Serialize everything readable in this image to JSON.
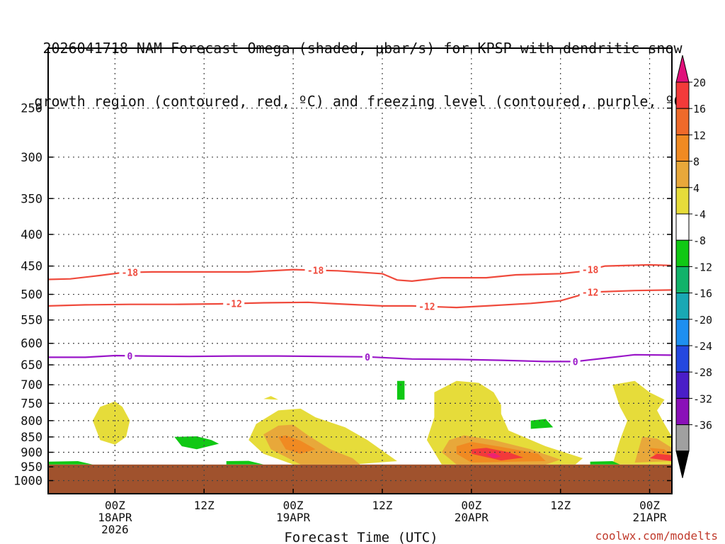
{
  "title_lines": [
    "2026041718 NAM Forecast Omega (shaded, μbar/s) for KPSP with dendritic snow",
    "growth region (contoured, red, ºC) and freezing level (contoured, purple, ºC)"
  ],
  "watermark": "coolwx.com/modelts",
  "chart_data": {
    "type": "heatmap",
    "title": "2026041718 NAM Forecast Omega (shaded, μbar/s) for KPSP with dendritic snow growth region (contoured, red, ºC) and freezing level (contoured, purple, ºC)",
    "xlabel": "Forecast Time (UTC)",
    "ylabel": "",
    "xlim_hours": [
      -9,
      75
    ],
    "ylim_hpa": [
      1050,
      200
    ],
    "y_ticks": [
      250,
      300,
      350,
      400,
      450,
      500,
      550,
      600,
      650,
      700,
      750,
      800,
      850,
      900,
      950,
      1000
    ],
    "x_ticks": [
      {
        "h": 0,
        "lines": [
          "00Z",
          "18APR",
          "2026"
        ]
      },
      {
        "h": 12,
        "lines": [
          "12Z"
        ]
      },
      {
        "h": 24,
        "lines": [
          "00Z",
          "19APR"
        ]
      },
      {
        "h": 36,
        "lines": [
          "12Z"
        ]
      },
      {
        "h": 48,
        "lines": [
          "00Z",
          "20APR"
        ]
      },
      {
        "h": 60,
        "lines": [
          "12Z"
        ]
      },
      {
        "h": 72,
        "lines": [
          "00Z",
          "21APR"
        ]
      }
    ],
    "surface_pressure_hpa": 942,
    "colorbar": {
      "labels": [
        "20",
        "16",
        "12",
        "8",
        "4",
        "-4",
        "-8",
        "-12",
        "-16",
        "-20",
        "-24",
        "-28",
        "-32",
        "-36"
      ],
      "colors": [
        "#f33a3a",
        "#ef6a2a",
        "#f08a22",
        "#e8a83a",
        "#e6dc3a",
        "#ffffff",
        "#10c814",
        "#12b36a",
        "#19a8b4",
        "#1e8ff0",
        "#2448e0",
        "#4a1ec8",
        "#8a10b8",
        "#a0a0a0"
      ],
      "top_arrow_color": "#e0107a",
      "bottom_arrow_color": "#000000"
    },
    "contours": [
      {
        "label": "-18",
        "color": "#ef4a3c",
        "points": [
          [
            -9,
            473
          ],
          [
            -6,
            472
          ],
          [
            -2,
            466
          ],
          [
            1,
            461
          ],
          [
            5,
            460
          ],
          [
            12,
            460
          ],
          [
            18,
            460
          ],
          [
            24,
            456
          ],
          [
            30,
            458
          ],
          [
            36,
            463
          ],
          [
            38,
            474
          ],
          [
            40,
            476
          ],
          [
            44,
            470
          ],
          [
            50,
            470
          ],
          [
            54,
            465
          ],
          [
            60,
            463
          ],
          [
            63,
            459
          ],
          [
            66,
            450
          ],
          [
            72,
            448
          ],
          [
            75,
            449
          ]
        ],
        "label_hours": [
          2,
          27,
          64
        ]
      },
      {
        "label": "-12",
        "color": "#ef4a3c",
        "points": [
          [
            -9,
            522
          ],
          [
            -4,
            520
          ],
          [
            2,
            519
          ],
          [
            8,
            519
          ],
          [
            14,
            518
          ],
          [
            20,
            516
          ],
          [
            26,
            515
          ],
          [
            30,
            518
          ],
          [
            36,
            522
          ],
          [
            40,
            522
          ],
          [
            46,
            525
          ],
          [
            50,
            522
          ],
          [
            56,
            517
          ],
          [
            60,
            512
          ],
          [
            62,
            504
          ],
          [
            64,
            496
          ],
          [
            70,
            493
          ],
          [
            75,
            492
          ]
        ],
        "label_hours": [
          16,
          42,
          64
        ]
      },
      {
        "label": "0",
        "color": "#9a16c8",
        "points": [
          [
            -9,
            632
          ],
          [
            -4,
            632
          ],
          [
            0,
            628
          ],
          [
            4,
            629
          ],
          [
            10,
            630
          ],
          [
            16,
            629
          ],
          [
            22,
            629
          ],
          [
            28,
            630
          ],
          [
            34,
            631
          ],
          [
            40,
            636
          ],
          [
            46,
            637
          ],
          [
            52,
            639
          ],
          [
            58,
            642
          ],
          [
            62,
            642
          ],
          [
            66,
            634
          ],
          [
            70,
            626
          ],
          [
            75,
            627
          ]
        ],
        "label_hours": [
          2,
          34,
          62
        ]
      }
    ],
    "omega_areas": [
      {
        "value_range": [
          4,
          8
        ],
        "color": "#e6dc3a",
        "poly": [
          [
            -3,
            800
          ],
          [
            -2,
            760
          ],
          [
            0,
            745
          ],
          [
            1,
            760
          ],
          [
            2,
            800
          ],
          [
            1.5,
            850
          ],
          [
            0,
            875
          ],
          [
            -2,
            860
          ]
        ]
      },
      {
        "value_range": [
          4,
          8
        ],
        "color": "#e6dc3a",
        "poly": [
          [
            19,
            810
          ],
          [
            22,
            770
          ],
          [
            25,
            765
          ],
          [
            27,
            790
          ],
          [
            31,
            820
          ],
          [
            34,
            860
          ],
          [
            38,
            930
          ],
          [
            32,
            942
          ],
          [
            24,
            942
          ],
          [
            20,
            905
          ],
          [
            18,
            860
          ]
        ]
      },
      {
        "value_range": [
          4,
          8
        ],
        "color": "#e6dc3a",
        "poly": [
          [
            43,
            720
          ],
          [
            46,
            690
          ],
          [
            49,
            695
          ],
          [
            51,
            720
          ],
          [
            52,
            755
          ],
          [
            52,
            780
          ],
          [
            53,
            830
          ],
          [
            58,
            880
          ],
          [
            63,
            920
          ],
          [
            62,
            942
          ],
          [
            44,
            942
          ],
          [
            42,
            860
          ],
          [
            43,
            790
          ]
        ]
      },
      {
        "value_range": [
          4,
          8
        ],
        "color": "#e6dc3a",
        "poly": [
          [
            67,
            700
          ],
          [
            70,
            690
          ],
          [
            72,
            720
          ],
          [
            74,
            740
          ],
          [
            73,
            770
          ],
          [
            74,
            810
          ],
          [
            76,
            890
          ],
          [
            76,
            942
          ],
          [
            67,
            942
          ],
          [
            68,
            860
          ],
          [
            69,
            800
          ],
          [
            68,
            760
          ]
        ]
      },
      {
        "value_range": [
          4,
          8
        ],
        "color": "#e6dc3a",
        "poly": [
          [
            20,
            738
          ],
          [
            21,
            730
          ],
          [
            22,
            740
          ]
        ]
      },
      {
        "value_range": [
          8,
          12
        ],
        "color": "#e8a83a",
        "poly": [
          [
            20,
            842
          ],
          [
            22,
            815
          ],
          [
            24,
            812
          ],
          [
            26,
            845
          ],
          [
            29,
            890
          ],
          [
            32,
            920
          ],
          [
            33,
            942
          ],
          [
            25,
            942
          ],
          [
            21,
            890
          ]
        ]
      },
      {
        "value_range": [
          8,
          12
        ],
        "color": "#e8a83a",
        "poly": [
          [
            45,
            860
          ],
          [
            47,
            845
          ],
          [
            51,
            860
          ],
          [
            56,
            890
          ],
          [
            60,
            925
          ],
          [
            58,
            942
          ],
          [
            46,
            942
          ],
          [
            44,
            900
          ]
        ]
      },
      {
        "value_range": [
          8,
          12
        ],
        "color": "#e8a83a",
        "poly": [
          [
            71,
            850
          ],
          [
            73,
            855
          ],
          [
            75,
            885
          ],
          [
            75,
            930
          ],
          [
            70,
            935
          ]
        ]
      },
      {
        "value_range": [
          12,
          16
        ],
        "color": "#f08a22",
        "poly": [
          [
            22,
            850
          ],
          [
            23,
            845
          ],
          [
            25,
            862
          ],
          [
            27,
            890
          ],
          [
            25,
            905
          ],
          [
            23,
            890
          ]
        ]
      },
      {
        "value_range": [
          12,
          16
        ],
        "color": "#f08a22",
        "poly": [
          [
            46,
            880
          ],
          [
            48,
            866
          ],
          [
            52,
            882
          ],
          [
            57,
            905
          ],
          [
            58,
            930
          ],
          [
            48,
            935
          ],
          [
            46,
            905
          ]
        ]
      },
      {
        "value_range": [
          12,
          16
        ],
        "color": "#f08a22",
        "poly": [
          [
            72,
            885
          ],
          [
            74,
            890
          ],
          [
            75,
            915
          ],
          [
            73,
            920
          ]
        ]
      },
      {
        "value_range": [
          16,
          20
        ],
        "color": "#f33a3a",
        "poly": [
          [
            48,
            890
          ],
          [
            50,
            885
          ],
          [
            53,
            900
          ],
          [
            55,
            918
          ],
          [
            52,
            928
          ],
          [
            48,
            905
          ]
        ]
      },
      {
        "value_range": [
          16,
          20
        ],
        "color": "#f33a3a",
        "poly": [
          [
            73,
            905
          ],
          [
            75,
            910
          ],
          [
            75,
            930
          ],
          [
            72,
            920
          ]
        ]
      },
      {
        "value_range": [
          20,
          24
        ],
        "color": "#ee2272",
        "poly": [
          [
            50,
            907
          ],
          [
            51,
            902
          ],
          [
            52,
            915
          ],
          [
            51,
            920
          ]
        ]
      },
      {
        "value_range": [
          -8,
          -4
        ],
        "color": "#10c814",
        "poly": [
          [
            8,
            850
          ],
          [
            11,
            848
          ],
          [
            13,
            860
          ],
          [
            14,
            872
          ],
          [
            11,
            890
          ],
          [
            9,
            880
          ]
        ]
      },
      {
        "value_range": [
          -8,
          -4
        ],
        "color": "#10c814",
        "poly": [
          [
            -9,
            932
          ],
          [
            -5,
            930
          ],
          [
            -3,
            942
          ],
          [
            -9,
            942
          ]
        ]
      },
      {
        "value_range": [
          -8,
          -4
        ],
        "color": "#10c814",
        "poly": [
          [
            15,
            930
          ],
          [
            18,
            929
          ],
          [
            20,
            942
          ],
          [
            15,
            942
          ]
        ]
      },
      {
        "value_range": [
          -8,
          -4
        ],
        "color": "#10c814",
        "poly": [
          [
            38,
            690
          ],
          [
            39,
            690
          ],
          [
            39,
            740
          ],
          [
            38,
            740
          ]
        ]
      },
      {
        "value_range": [
          -8,
          -4
        ],
        "color": "#10c814",
        "poly": [
          [
            56,
            800
          ],
          [
            58,
            795
          ],
          [
            59,
            820
          ],
          [
            56,
            825
          ]
        ]
      },
      {
        "value_range": [
          -8,
          -4
        ],
        "color": "#10c814",
        "poly": [
          [
            64,
            932
          ],
          [
            67,
            930
          ],
          [
            68,
            942
          ],
          [
            64,
            942
          ]
        ]
      }
    ]
  }
}
